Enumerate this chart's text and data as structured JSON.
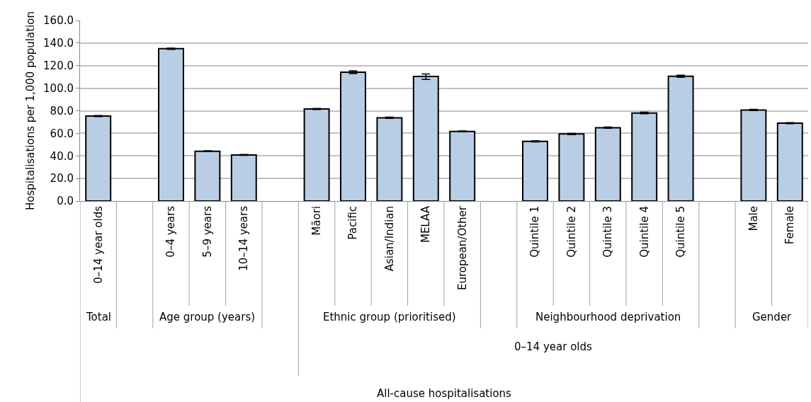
{
  "chart_data": {
    "type": "bar",
    "ylabel": "Hospitalisations per 1,000 population",
    "categories": [
      "0–14 year olds",
      null,
      "0–4 years",
      "5–9 years",
      "10–14 years",
      null,
      "Māori",
      "Pacific",
      "Asian/Indian",
      "MELAA",
      "European/Other",
      null,
      "Quintile 1",
      "Quintile 2",
      "Quintile 3",
      "Quintile 4",
      "Quintile 5",
      null,
      "Male",
      "Female"
    ],
    "values": [
      75.3,
      null,
      135.0,
      44.1,
      40.8,
      null,
      81.6,
      114.2,
      73.8,
      110.4,
      61.7,
      null,
      52.9,
      59.4,
      65.0,
      78.0,
      110.6,
      null,
      80.7,
      69.0
    ],
    "errors": [
      0.5,
      null,
      0.6,
      0.4,
      0.4,
      null,
      0.5,
      1.2,
      0.6,
      [
        107.7,
        112.7
      ],
      0.4,
      null,
      0.5,
      0.5,
      0.6,
      0.7,
      1.0,
      null,
      0.5,
      0.5
    ],
    "color": "#b9cde5",
    "ylim": [
      0,
      160
    ],
    "yticks": [
      {
        "value": 0,
        "label": "0.0"
      },
      {
        "value": 20,
        "label": "20.0"
      },
      {
        "value": 40,
        "label": "40.0"
      },
      {
        "value": 60,
        "label": "60.0"
      },
      {
        "value": 80,
        "label": "80.0"
      },
      {
        "value": 100,
        "label": "100.0"
      },
      {
        "value": 120,
        "label": "120.0"
      },
      {
        "value": 140,
        "label": "140.0"
      },
      {
        "value": 160,
        "label": "160.0"
      }
    ],
    "grid": "y",
    "annotations": [
      "Total",
      "Age group (years)",
      "Ethnic group (prioritised)",
      "Neighbourhood deprivation",
      "Gender",
      "0–14 year olds",
      "All-cause hospitalisations"
    ]
  }
}
